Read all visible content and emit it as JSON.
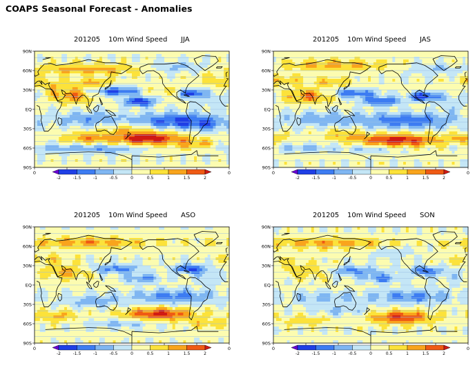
{
  "page_title": "COAPS Seasonal Forecast - Anomalies",
  "colors": {
    "bins": [
      "#6a00d6",
      "#1f3fe6",
      "#3d7cf2",
      "#7fb6f2",
      "#c4e6f6",
      "#fcfcb0",
      "#fce23a",
      "#f9a41c",
      "#ef5a14",
      "#d01a14"
    ],
    "land_outline": "#000000",
    "gridline": "#9ac0e4"
  },
  "colorbar": {
    "labels": [
      "-2",
      "-1.5",
      "-1",
      "-0.5",
      "0",
      "0.5",
      "1",
      "1.5",
      "2"
    ]
  },
  "axes": {
    "lat_labels": [
      "90N",
      "60N",
      "30N",
      "EQ",
      "30S",
      "60S",
      "90S"
    ],
    "lon_labels": [
      "0",
      "60E",
      "120E",
      "180",
      "120W",
      "60W",
      "0"
    ]
  },
  "panels": [
    {
      "date": "201205",
      "variable": "10m Wind Speed",
      "season": "JJA"
    },
    {
      "date": "201205",
      "variable": "10m Wind Speed",
      "season": "JAS"
    },
    {
      "date": "201205",
      "variable": "10m Wind Speed",
      "season": "ASO"
    },
    {
      "date": "201205",
      "variable": "10m Wind Speed",
      "season": "SON"
    }
  ]
}
